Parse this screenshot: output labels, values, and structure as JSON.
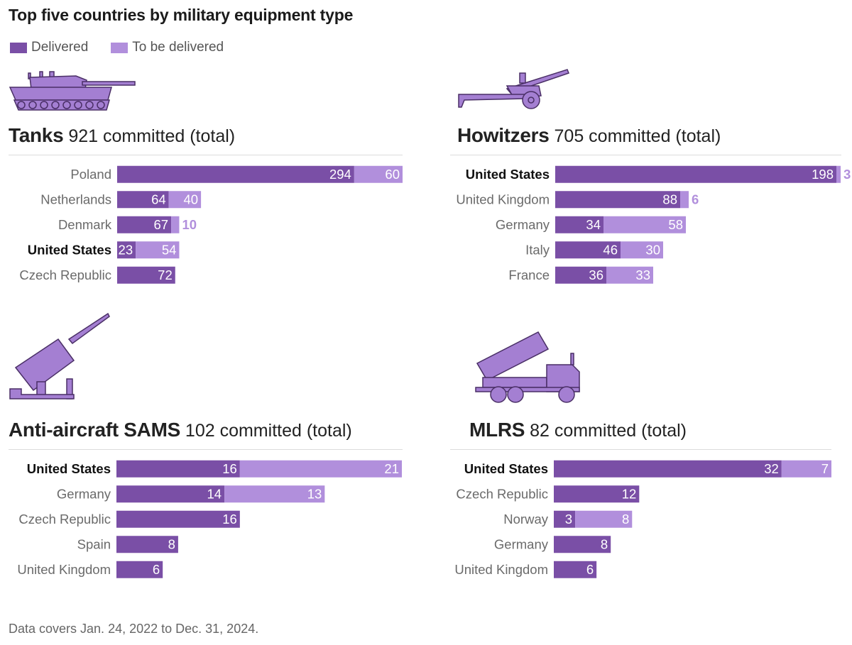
{
  "title": "Top five countries by military equipment type",
  "legend": {
    "delivered_label": "Delivered",
    "tbd_label": "To be delivered",
    "delivered_color": "#7a4fa6",
    "tbd_color": "#b18fdc"
  },
  "footnote": "Data covers Jan. 24, 2022 to Dec. 31, 2024.",
  "chart_data": [
    {
      "type": "bar",
      "title": "Tanks",
      "subtitle": "921 committed (total)",
      "icon": "tank-icon",
      "xlim": [
        0,
        354
      ],
      "rows": [
        {
          "label": "Poland",
          "delivered": 294,
          "to_be_delivered": 60,
          "bold": false
        },
        {
          "label": "Netherlands",
          "delivered": 64,
          "to_be_delivered": 40,
          "bold": false
        },
        {
          "label": "Denmark",
          "delivered": 67,
          "to_be_delivered": 10,
          "bold": false
        },
        {
          "label": "United States",
          "delivered": 23,
          "to_be_delivered": 54,
          "bold": true
        },
        {
          "label": "Czech Republic",
          "delivered": 72,
          "to_be_delivered": 0,
          "bold": false
        }
      ]
    },
    {
      "type": "bar",
      "title": "Howitzers",
      "subtitle": "705 committed (total)",
      "icon": "howitzer-icon",
      "xlim": [
        0,
        201
      ],
      "rows": [
        {
          "label": "United States",
          "delivered": 198,
          "to_be_delivered": 3,
          "bold": true
        },
        {
          "label": "United Kingdom",
          "delivered": 88,
          "to_be_delivered": 6,
          "bold": false
        },
        {
          "label": "Germany",
          "delivered": 34,
          "to_be_delivered": 58,
          "bold": false
        },
        {
          "label": "Italy",
          "delivered": 46,
          "to_be_delivered": 30,
          "bold": false
        },
        {
          "label": "France",
          "delivered": 36,
          "to_be_delivered": 33,
          "bold": false
        }
      ]
    },
    {
      "type": "bar",
      "title": "Anti-aircraft SAMS",
      "subtitle": "102 committed (total)",
      "icon": "missile-launcher-icon",
      "xlim": [
        0,
        37
      ],
      "rows": [
        {
          "label": "United States",
          "delivered": 16,
          "to_be_delivered": 21,
          "bold": true
        },
        {
          "label": "Germany",
          "delivered": 14,
          "to_be_delivered": 13,
          "bold": false
        },
        {
          "label": "Czech Republic",
          "delivered": 16,
          "to_be_delivered": 0,
          "bold": false
        },
        {
          "label": "Spain",
          "delivered": 8,
          "to_be_delivered": 0,
          "bold": false
        },
        {
          "label": "United Kingdom",
          "delivered": 6,
          "to_be_delivered": 0,
          "bold": false
        }
      ]
    },
    {
      "type": "bar",
      "title": "MLRS",
      "subtitle": "82 committed (total)",
      "icon": "rocket-truck-icon",
      "xlim": [
        0,
        39
      ],
      "rows": [
        {
          "label": "United States",
          "delivered": 32,
          "to_be_delivered": 7,
          "bold": true
        },
        {
          "label": "Czech Republic",
          "delivered": 12,
          "to_be_delivered": 0,
          "bold": false
        },
        {
          "label": "Norway",
          "delivered": 3,
          "to_be_delivered": 8,
          "bold": false
        },
        {
          "label": "Germany",
          "delivered": 8,
          "to_be_delivered": 0,
          "bold": false
        },
        {
          "label": "United Kingdom",
          "delivered": 6,
          "to_be_delivered": 0,
          "bold": false
        }
      ]
    }
  ]
}
